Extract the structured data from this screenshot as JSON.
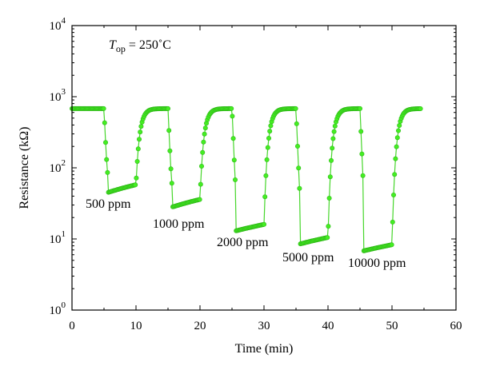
{
  "chart_data": {
    "type": "scatter",
    "title": "",
    "xlabel": "Time (min)",
    "ylabel": "Resistance (kΩ)",
    "xlim": [
      0,
      60
    ],
    "ylim": [
      1,
      10000
    ],
    "yscale": "log",
    "grid": false,
    "x_ticks": [
      "0",
      "10",
      "20",
      "30",
      "40",
      "50",
      "60"
    ],
    "y_ticks": [
      {
        "base": "10",
        "exp": "0"
      },
      {
        "base": "10",
        "exp": "1"
      },
      {
        "base": "10",
        "exp": "2"
      },
      {
        "base": "10",
        "exp": "3"
      },
      {
        "base": "10",
        "exp": "4"
      }
    ],
    "condition": {
      "symbol": "T",
      "subscript": "op",
      "value": " = 250˚C"
    },
    "baseline": 680,
    "series": [
      {
        "color": "#44ee22",
        "cycles": [
          {
            "label": "500 ppm",
            "on": 5.0,
            "off": 10.0,
            "min": 45,
            "max": 58
          },
          {
            "label": "1000 ppm",
            "on": 15.0,
            "off": 20.0,
            "min": 28,
            "max": 36
          },
          {
            "label": "2000 ppm",
            "on": 25.0,
            "off": 30.0,
            "min": 13,
            "max": 16
          },
          {
            "label": "5000 ppm",
            "on": 35.0,
            "off": 40.0,
            "min": 8.5,
            "max": 10.5
          },
          {
            "label": "10000 ppm",
            "on": 45.0,
            "off": 50.0,
            "min": 6.8,
            "max": 8.3
          }
        ],
        "end": 54.5
      }
    ]
  }
}
